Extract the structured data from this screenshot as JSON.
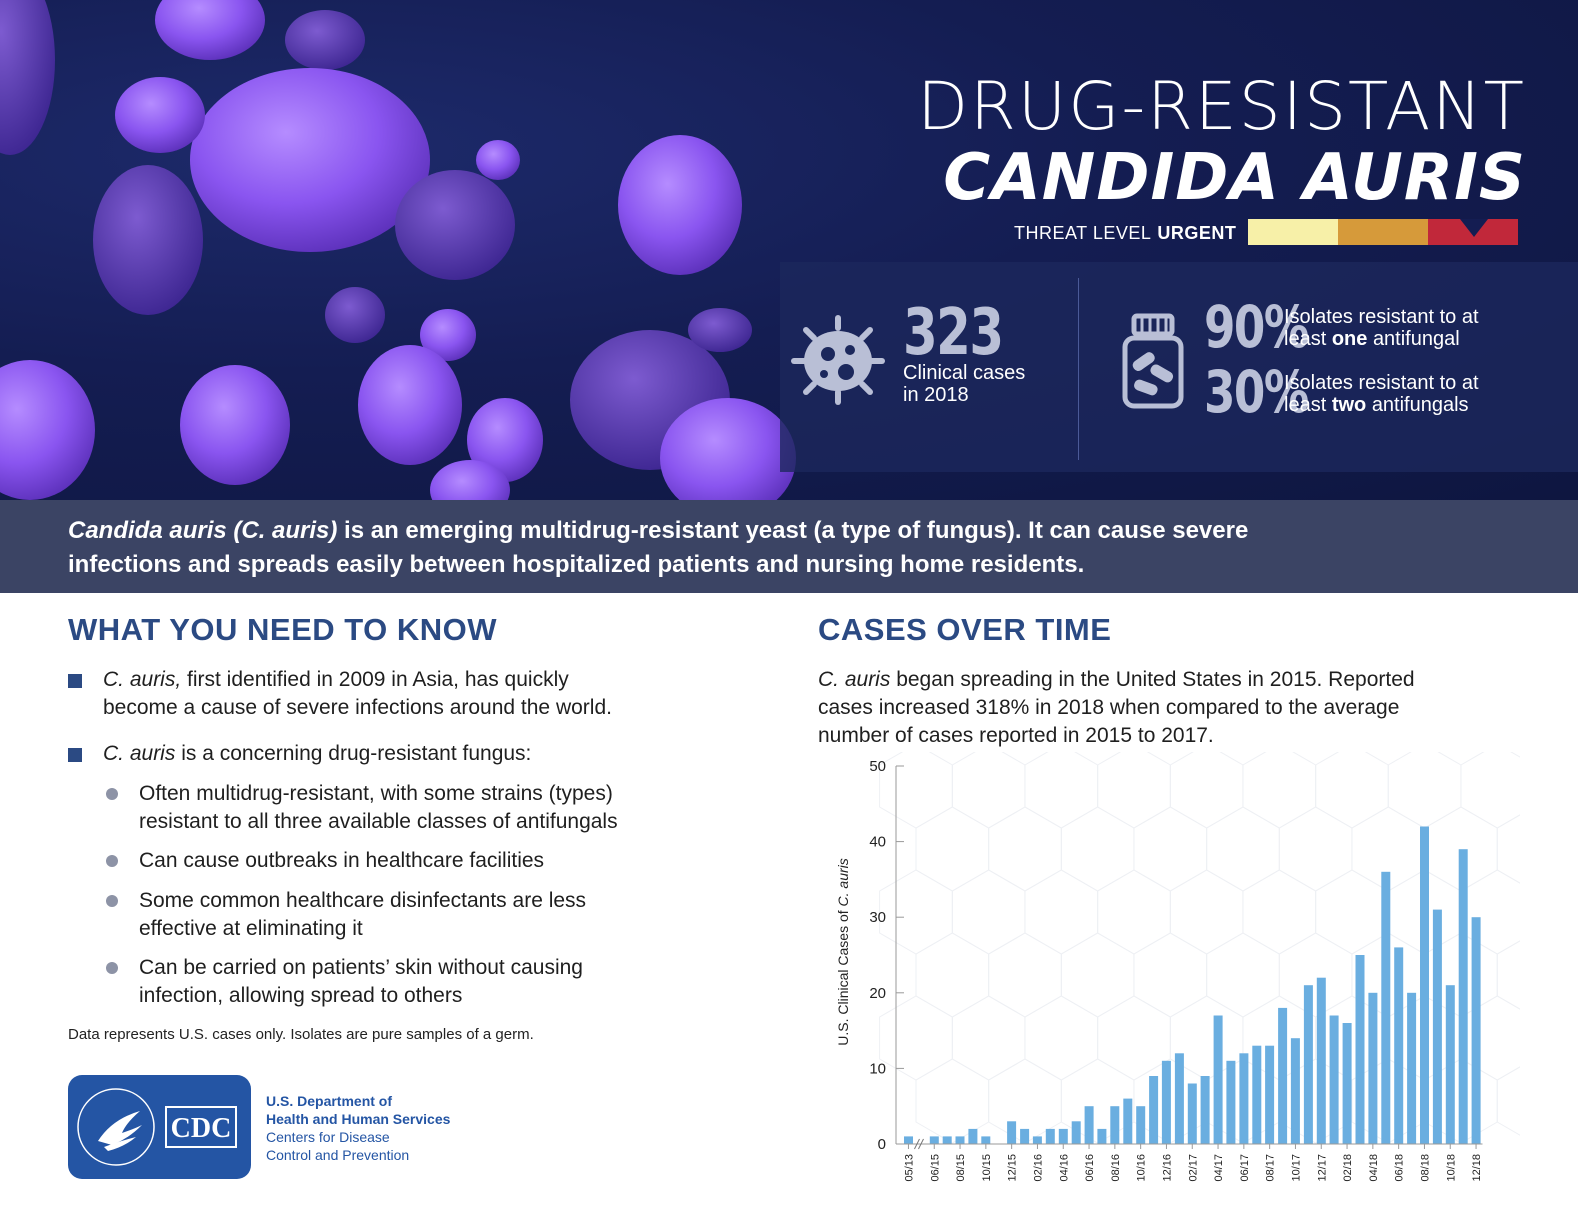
{
  "header": {
    "title_line1": "DRUG-RESISTANT",
    "title_line2": "CANDIDA AURIS",
    "threat_label": "THREAT LEVEL",
    "threat_value": "URGENT"
  },
  "stats": {
    "cases_number": "323",
    "cases_label_1": "Clinical cases",
    "cases_label_2": "in 2018",
    "stat1_percent": "90%",
    "stat1_line1": "Isolates resistant to at",
    "stat1_line2_pre": "least",
    "stat1_line2_bold": "one",
    "stat1_line2_post": "antifungal",
    "stat2_percent": "30%",
    "stat2_line1": "Isolates resistant to at",
    "stat2_line2_pre": "least",
    "stat2_line2_bold": "two",
    "stat2_line2_post": "antifungals"
  },
  "banner": {
    "italic_part": "Candida auris (C. auris)",
    "line1_rest": " is an emerging multidrug-resistant yeast (a type of fungus). It can cause severe",
    "line2": "infections and spreads easily between hospitalized patients and nursing home residents."
  },
  "know": {
    "heading": "WHAT YOU NEED TO KNOW",
    "b1_italic": "C. auris,",
    "b1_line1_rest": " first identified in 2009 in Asia, has quickly",
    "b1_line2": "become a cause of severe infections around the world.",
    "b2_italic": "C. auris",
    "b2_rest": " is a concerning drug-resistant fungus:",
    "s1_line1": "Often multidrug-resistant, with some strains (types)",
    "s1_line2": "resistant to all three available classes of antifungals",
    "s2_line1": "Can cause outbreaks in healthcare facilities",
    "s3_line1": "Some common healthcare disinfectants are less",
    "s3_line2": "effective at eliminating it",
    "s4_line1": "Can be carried on patients’ skin without causing",
    "s4_line2": "infection, allowing spread to others",
    "note": "Data represents U.S. cases only. Isolates are pure samples of a germ."
  },
  "footer": {
    "logo_text": "CDC",
    "org_line1": "U.S. Department of",
    "org_line2": "Health and Human Services",
    "org_line3": "Centers for Disease",
    "org_line4": "Control and Prevention"
  },
  "cases": {
    "heading": "CASES OVER TIME",
    "intro_italic": "C. auris",
    "intro_line1_rest": " began spreading in the United States in 2015. Reported",
    "intro_line2": "cases increased 318% in 2018 when compared to the average",
    "intro_line3": "number of cases reported in 2015 to 2017."
  },
  "colors": {
    "bar": "#6aaee0",
    "heading": "#2b4a83",
    "banner": "#3b4464",
    "threat_yellow": "#f7f0a8",
    "threat_orange": "#d69a3a",
    "threat_red": "#c1283a"
  },
  "icons": [
    "germ-icon",
    "pill-bottle-icon",
    "hhs-eagle-icon"
  ],
  "chart_data": {
    "type": "bar",
    "ylabel_pre": "U.S. Clinical Cases of ",
    "ylabel_italic": "C. auris",
    "ylim": [
      0,
      50
    ],
    "yticks": [
      0,
      10,
      20,
      30,
      40,
      50
    ],
    "axis_break_after_first": true,
    "x": [
      "05/13",
      "05/15",
      "06/15",
      "07/15",
      "08/15",
      "09/15",
      "10/15",
      "11/15",
      "12/15",
      "01/16",
      "02/16",
      "03/16",
      "04/16",
      "05/16",
      "06/16",
      "07/16",
      "08/16",
      "09/16",
      "10/16",
      "11/16",
      "12/16",
      "01/17",
      "02/17",
      "03/17",
      "04/17",
      "05/17",
      "06/17",
      "07/17",
      "08/17",
      "09/17",
      "10/17",
      "11/17",
      "12/17",
      "01/18",
      "02/18",
      "03/18",
      "04/18",
      "05/18",
      "06/18",
      "07/18",
      "08/18",
      "09/18",
      "10/18",
      "11/18",
      "12/18"
    ],
    "values": [
      1,
      0,
      1,
      1,
      1,
      2,
      1,
      0,
      3,
      2,
      1,
      2,
      2,
      3,
      5,
      2,
      5,
      6,
      5,
      9,
      11,
      12,
      8,
      9,
      17,
      11,
      12,
      13,
      13,
      18,
      14,
      21,
      22,
      17,
      16,
      25,
      20,
      36,
      26,
      20,
      42,
      31,
      21,
      39,
      30
    ],
    "tick_labels": [
      "05/13",
      "06/15",
      "08/15",
      "10/15",
      "12/15",
      "02/16",
      "04/16",
      "06/16",
      "08/16",
      "10/16",
      "12/16",
      "02/17",
      "04/17",
      "06/17",
      "08/17",
      "10/17",
      "12/17",
      "02/18",
      "04/18",
      "06/18",
      "08/18",
      "10/18",
      "12/18"
    ]
  }
}
